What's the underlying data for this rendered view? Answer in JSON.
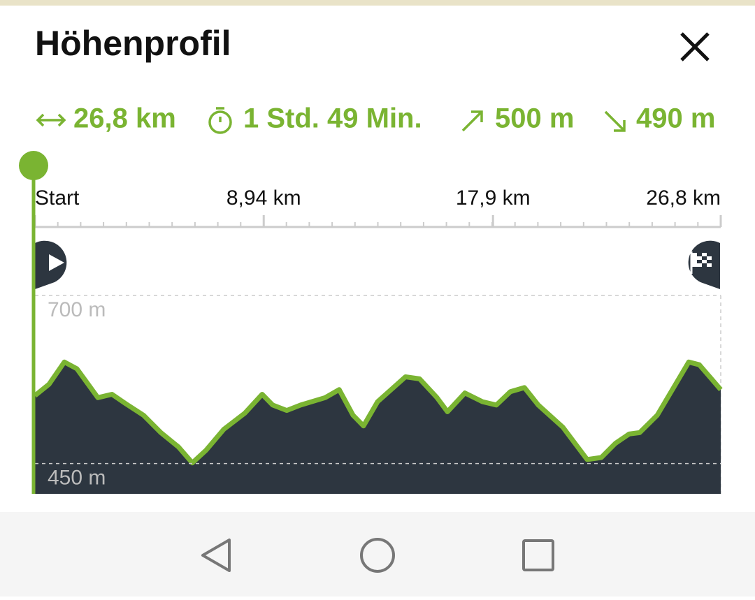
{
  "header": {
    "title": "Höhenprofil"
  },
  "stats": {
    "distance": "26,8 km",
    "duration": "1 Std. 49 Min.",
    "ascent": "500 m",
    "descent": "490 m"
  },
  "chart_data": {
    "type": "area",
    "x": [
      0,
      0.55,
      1.15,
      1.64,
      2.46,
      3.01,
      3.55,
      4.24,
      4.92,
      5.6,
      6.15,
      6.69,
      7.38,
      8.2,
      8.88,
      9.29,
      9.84,
      10.38,
      11.34,
      11.89,
      12.43,
      12.84,
      13.39,
      14.48,
      15.03,
      15.71,
      16.12,
      16.8,
      17.49,
      18.03,
      18.58,
      19.13,
      19.67,
      20.63,
      21.58,
      22.13,
      22.68,
      23.22,
      23.63,
      24.32,
      25.55,
      25.96,
      26.8
    ],
    "values": [
      551,
      568,
      601,
      591,
      548,
      553,
      539,
      522,
      496,
      475,
      451,
      470,
      501,
      525,
      553,
      537,
      529,
      537,
      548,
      560,
      522,
      506,
      542,
      579,
      576,
      548,
      527,
      555,
      542,
      537,
      557,
      563,
      537,
      504,
      456,
      459,
      480,
      494,
      496,
      522,
      601,
      597,
      560
    ],
    "xlim": [
      0,
      26.8
    ],
    "ylim": [
      405,
      700
    ],
    "xticks": [
      {
        "value": 0,
        "label": "Start"
      },
      {
        "value": 8.94,
        "label": "8,94 km"
      },
      {
        "value": 17.9,
        "label": "17,9 km"
      },
      {
        "value": 26.8,
        "label": "26,8 km"
      }
    ],
    "yticks": [
      {
        "value": 700,
        "label": "700 m"
      },
      {
        "value": 450,
        "label": "450 m"
      }
    ],
    "color": "#7ab432",
    "fill": "#2d3640",
    "grid": true
  }
}
